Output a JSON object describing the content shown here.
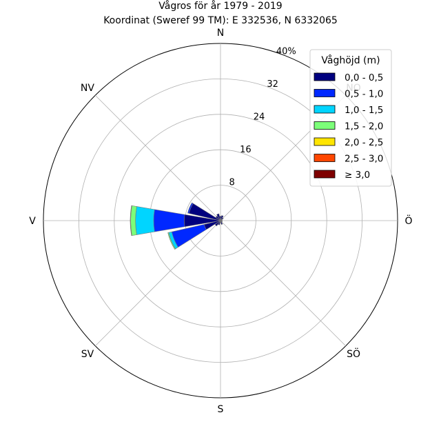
{
  "chart_data": {
    "type": "windrose",
    "title": "Vågros för år 1979 - 2019",
    "subtitle": "Koordinat (Sweref 99 TM): E 332536, N 6332065",
    "directions": [
      "N",
      "NO",
      "Ö",
      "SÖ",
      "S",
      "SV",
      "V",
      "NV"
    ],
    "sector_angles_deg": [
      0,
      22.5,
      45,
      67.5,
      90,
      112.5,
      135,
      157.5,
      180,
      202.5,
      225,
      247.5,
      270,
      292.5,
      315,
      337.5
    ],
    "radial_ticks": [
      "8",
      "16",
      "24",
      "32",
      "40%"
    ],
    "radial_max_percent": 40,
    "legend": {
      "title": "Våghöjd (m)",
      "placement": "top-right",
      "items": [
        {
          "label": "0,0 - 0,5",
          "color": "#00007f"
        },
        {
          "label": "0,5 - 1,0",
          "color": "#0028ff"
        },
        {
          "label": "1,0 - 1,5",
          "color": "#00d5ff"
        },
        {
          "label": "1,5 - 2,0",
          "color": "#7cff79"
        },
        {
          "label": "2,0 - 2,5",
          "color": "#ffe500"
        },
        {
          "label": "2,5 - 3,0",
          "color": "#ff4600"
        },
        {
          "label": "≥ 3,0",
          "color": "#7f0000"
        }
      ]
    },
    "series": [
      {
        "name": "0,0 - 0,5",
        "values": [
          1.0,
          1.2,
          0.8,
          0.4,
          0.4,
          0.4,
          0.5,
          0.9,
          0.5,
          1.0,
          1.5,
          3.8,
          8.2,
          7.3,
          1.3,
          1.6
        ]
      },
      {
        "name": "0,5 - 1,0",
        "values": [
          0,
          0,
          0,
          0,
          0,
          0,
          0,
          0,
          0,
          0,
          0,
          7.5,
          6.9,
          0.3,
          0,
          0
        ]
      },
      {
        "name": "1,0 - 1,5",
        "values": [
          0,
          0,
          0,
          0,
          0,
          0,
          0,
          0,
          0,
          0,
          0,
          0.7,
          4.1,
          0,
          0,
          0
        ]
      },
      {
        "name": "1,5 - 2,0",
        "values": [
          0,
          0,
          0,
          0,
          0,
          0,
          0,
          0,
          0,
          0,
          0,
          0.2,
          1.1,
          0,
          0,
          0
        ]
      },
      {
        "name": "2,0 - 2,5",
        "values": [
          0,
          0,
          0,
          0,
          0,
          0,
          0,
          0,
          0,
          0,
          0,
          0,
          0.1,
          0,
          0,
          0
        ]
      },
      {
        "name": "2,5 - 3,0",
        "values": [
          0,
          0,
          0,
          0,
          0,
          0,
          0,
          0,
          0,
          0,
          0,
          0,
          0,
          0,
          0,
          0
        ]
      },
      {
        "name": "≥ 3,0",
        "values": [
          0,
          0,
          0,
          0,
          0,
          0,
          0,
          0,
          0,
          0,
          0,
          0,
          0,
          0,
          0,
          0
        ]
      }
    ]
  }
}
